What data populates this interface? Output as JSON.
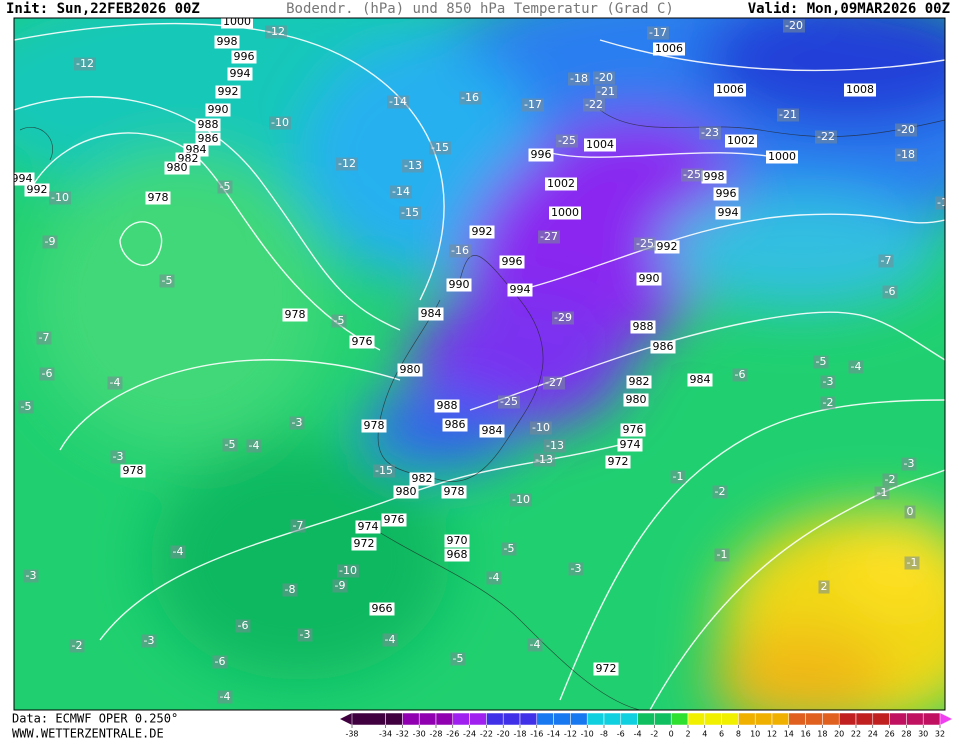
{
  "header": {
    "init": "Init: Sun,22FEB2026 00Z",
    "title": "Bodendr. (hPa) und 850 hPa Temperatur (Grad C)",
    "valid": "Valid: Mon,09MAR2026 00Z"
  },
  "footer": {
    "source": "Data: ECMWF OPER 0.250°",
    "url": "WWW.WETTERZENTRALE.DE"
  },
  "legend": {
    "ticks": [
      -38,
      -34,
      -32,
      -30,
      -28,
      -26,
      -24,
      -22,
      -20,
      -18,
      -16,
      -14,
      -12,
      -10,
      -8,
      -6,
      -4,
      -2,
      0,
      2,
      4,
      6,
      8,
      10,
      12,
      14,
      16,
      18,
      20,
      22,
      24,
      26,
      28,
      30,
      32
    ]
  },
  "map": {
    "pressure_labels": [
      1000,
      998,
      996,
      994,
      992,
      990,
      988,
      986,
      984,
      982,
      980,
      978,
      978,
      976,
      980,
      978,
      982,
      980,
      978,
      974,
      976,
      972,
      970,
      968,
      966,
      972,
      978,
      988,
      986,
      984,
      992,
      996,
      994,
      990,
      984,
      996,
      1002,
      1000,
      1004,
      998,
      996,
      994,
      992,
      990,
      988,
      986,
      982,
      980,
      984,
      976,
      974,
      972,
      1006,
      1006,
      1008,
      1002,
      1000,
      992,
      994
    ],
    "temperature_labels": [
      -12,
      -12,
      -10,
      -14,
      -16,
      -17,
      -12,
      -13,
      -15,
      -14,
      -15,
      -16,
      -5,
      -10,
      -9,
      -5,
      -5,
      -7,
      -6,
      -4,
      -5,
      -3,
      -5,
      -4,
      -3,
      -7,
      -4,
      -3,
      -8,
      -6,
      -3,
      -3,
      -2,
      -6,
      -4,
      -10,
      -9,
      -4,
      -5,
      -4,
      -3,
      -4,
      -5,
      -10,
      -13,
      -15,
      -25,
      -25,
      -27,
      -29,
      -27,
      -25,
      -25,
      -23,
      -21,
      -22,
      -20,
      -18,
      -17,
      -20,
      -20,
      -22,
      -21,
      -18,
      -10,
      -7,
      -6,
      -5,
      -4,
      -3,
      -2,
      -6,
      -3,
      -2,
      -1,
      0,
      -1,
      2,
      -1,
      -2,
      -1,
      -10,
      -13
    ]
  }
}
